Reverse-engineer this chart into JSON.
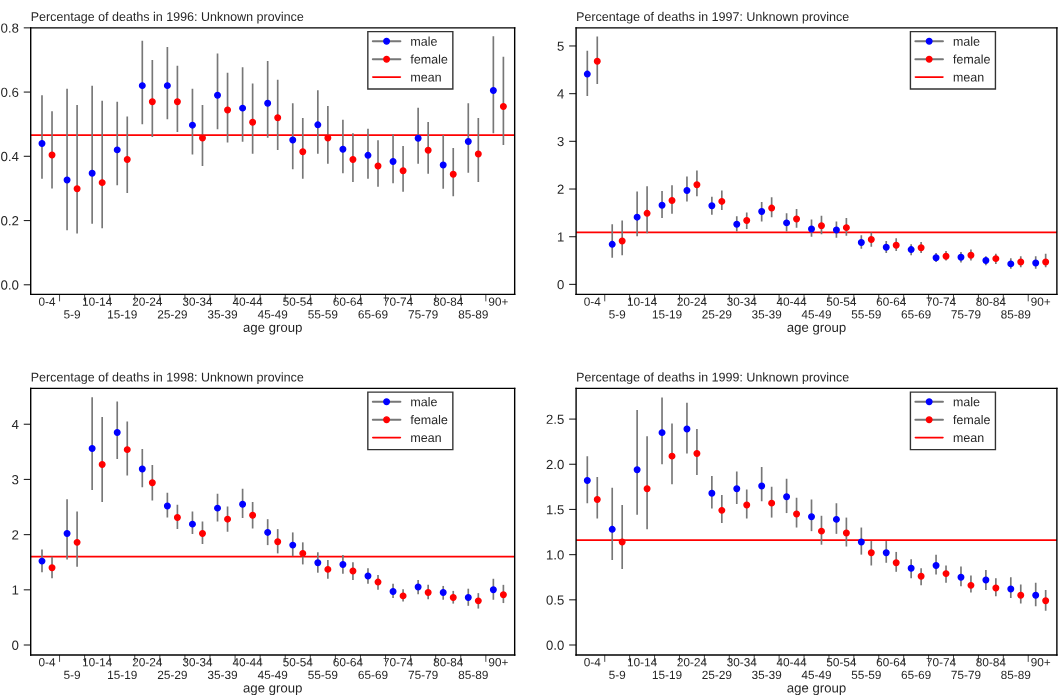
{
  "chart_data": [
    {
      "type": "scatter",
      "title": "Percentage of deaths in 1996: Unknown province",
      "xlabel": "age group",
      "categories": [
        "0-4",
        "5-9",
        "10-14",
        "15-19",
        "20-24",
        "25-29",
        "30-34",
        "35-39",
        "40-44",
        "45-49",
        "50-54",
        "55-59",
        "60-64",
        "65-69",
        "70-74",
        "75-79",
        "80-84",
        "85-89",
        "90+"
      ],
      "series": [
        {
          "name": "male",
          "color": "#0000ff",
          "values": [
            0.44,
            0.326,
            0.347,
            0.42,
            0.62,
            0.62,
            0.497,
            0.59,
            0.55,
            0.565,
            0.451,
            0.498,
            0.422,
            0.403,
            0.384,
            0.456,
            0.373,
            0.446,
            0.605
          ],
          "errors": [
            [
              0.33,
              0.59
            ],
            [
              0.17,
              0.61
            ],
            [
              0.19,
              0.62
            ],
            [
              0.31,
              0.57
            ],
            [
              0.5,
              0.76
            ],
            [
              0.515,
              0.74
            ],
            [
              0.406,
              0.61
            ],
            [
              0.484,
              0.72
            ],
            [
              0.445,
              0.677
            ],
            [
              0.458,
              0.697
            ],
            [
              0.36,
              0.565
            ],
            [
              0.408,
              0.606
            ],
            [
              0.347,
              0.514
            ],
            [
              0.33,
              0.486
            ],
            [
              0.316,
              0.469
            ],
            [
              0.377,
              0.551
            ],
            [
              0.299,
              0.466
            ],
            [
              0.349,
              0.565
            ],
            [
              0.472,
              0.774
            ]
          ]
        },
        {
          "name": "female",
          "color": "#ff0000",
          "values": [
            0.404,
            0.299,
            0.318,
            0.39,
            0.57,
            0.57,
            0.457,
            0.544,
            0.506,
            0.52,
            0.414,
            0.457,
            0.39,
            0.37,
            0.355,
            0.419,
            0.344,
            0.407,
            0.555
          ],
          "errors": [
            [
              0.3,
              0.54
            ],
            [
              0.16,
              0.56
            ],
            [
              0.176,
              0.573
            ],
            [
              0.286,
              0.524
            ],
            [
              0.46,
              0.7
            ],
            [
              0.476,
              0.682
            ],
            [
              0.37,
              0.56
            ],
            [
              0.443,
              0.66
            ],
            [
              0.408,
              0.627
            ],
            [
              0.42,
              0.638
            ],
            [
              0.33,
              0.519
            ],
            [
              0.377,
              0.557
            ],
            [
              0.32,
              0.472
            ],
            [
              0.305,
              0.45
            ],
            [
              0.29,
              0.432
            ],
            [
              0.346,
              0.507
            ],
            [
              0.276,
              0.426
            ],
            [
              0.32,
              0.519
            ],
            [
              0.435,
              0.71
            ]
          ]
        }
      ],
      "ref_lines": [
        {
          "axis": "y",
          "value": 0.466,
          "label": "mean",
          "color": "#ff0000"
        }
      ],
      "ylim": [
        -0.03,
        0.8
      ],
      "yticks": [
        {
          "value": 0,
          "label": "0.0"
        },
        0.2,
        0.4,
        0.6,
        0.8
      ],
      "legend": "top right",
      "marker": "circle",
      "grid": false
    },
    {
      "type": "scatter",
      "title": "Percentage of deaths in 1997: Unknown province",
      "xlabel": "age group",
      "categories": [
        "0-4",
        "5-9",
        "10-14",
        "15-19",
        "20-24",
        "25-29",
        "30-34",
        "35-39",
        "40-44",
        "45-49",
        "50-54",
        "55-59",
        "60-64",
        "65-69",
        "70-74",
        "75-79",
        "80-84",
        "85-89",
        "90+"
      ],
      "series": [
        {
          "name": "male",
          "color": "#0000ff",
          "values": [
            4.41,
            0.84,
            1.41,
            1.66,
            1.97,
            1.65,
            1.26,
            1.53,
            1.29,
            1.16,
            1.14,
            0.88,
            0.78,
            0.73,
            0.56,
            0.57,
            0.5,
            0.43,
            0.45
          ],
          "errors": [
            [
              3.95,
              4.9
            ],
            [
              0.56,
              1.26
            ],
            [
              1.01,
              1.95
            ],
            [
              1.39,
              1.96
            ],
            [
              1.74,
              2.26
            ],
            [
              1.46,
              1.84
            ],
            [
              1.11,
              1.43
            ],
            [
              1.32,
              1.73
            ],
            [
              1.11,
              1.49
            ],
            [
              1.0,
              1.36
            ],
            [
              0.98,
              1.32
            ],
            [
              0.75,
              1.03
            ],
            [
              0.66,
              0.91
            ],
            [
              0.61,
              0.84
            ],
            [
              0.47,
              0.66
            ],
            [
              0.46,
              0.68
            ],
            [
              0.4,
              0.59
            ],
            [
              0.33,
              0.55
            ],
            [
              0.33,
              0.59
            ]
          ]
        },
        {
          "name": "female",
          "color": "#ff0000",
          "values": [
            4.68,
            0.91,
            1.49,
            1.76,
            2.09,
            1.74,
            1.34,
            1.6,
            1.37,
            1.23,
            1.19,
            0.94,
            0.82,
            0.77,
            0.59,
            0.61,
            0.54,
            0.47,
            0.47
          ],
          "errors": [
            [
              4.2,
              5.2
            ],
            [
              0.61,
              1.34
            ],
            [
              1.07,
              2.06
            ],
            [
              1.48,
              2.08
            ],
            [
              1.85,
              2.39
            ],
            [
              1.56,
              1.97
            ],
            [
              1.16,
              1.51
            ],
            [
              1.41,
              1.83
            ],
            [
              1.19,
              1.58
            ],
            [
              1.05,
              1.44
            ],
            [
              1.02,
              1.39
            ],
            [
              0.79,
              1.09
            ],
            [
              0.7,
              0.97
            ],
            [
              0.66,
              0.89
            ],
            [
              0.5,
              0.7
            ],
            [
              0.5,
              0.73
            ],
            [
              0.43,
              0.64
            ],
            [
              0.36,
              0.59
            ],
            [
              0.36,
              0.64
            ]
          ]
        }
      ],
      "ref_lines": [
        {
          "axis": "y",
          "value": 1.09,
          "label": "mean",
          "color": "#ff0000"
        }
      ],
      "ylim": [
        -0.21,
        5.38
      ],
      "yticks": [
        0,
        1,
        2,
        3,
        4,
        5
      ],
      "legend": "top right",
      "marker": "circle",
      "grid": false
    },
    {
      "type": "scatter",
      "title": "Percentage of deaths in 1998: Unknown province",
      "xlabel": "age group",
      "categories": [
        "0-4",
        "5-9",
        "10-14",
        "15-19",
        "20-24",
        "25-29",
        "30-34",
        "35-39",
        "40-44",
        "45-49",
        "50-54",
        "55-59",
        "60-64",
        "65-69",
        "70-74",
        "75-79",
        "80-84",
        "85-89",
        "90+"
      ],
      "series": [
        {
          "name": "male",
          "color": "#0000ff",
          "values": [
            1.52,
            2.02,
            3.56,
            3.85,
            3.19,
            2.52,
            2.19,
            2.48,
            2.55,
            2.04,
            1.81,
            1.49,
            1.46,
            1.25,
            0.97,
            1.05,
            0.95,
            0.86,
            1.0
          ],
          "errors": [
            [
              1.32,
              1.73
            ],
            [
              1.55,
              2.64
            ],
            [
              2.81,
              4.49
            ],
            [
              3.37,
              4.41
            ],
            [
              2.86,
              3.55
            ],
            [
              2.31,
              2.76
            ],
            [
              2.01,
              2.42
            ],
            [
              2.24,
              2.74
            ],
            [
              2.3,
              2.83
            ],
            [
              1.81,
              2.28
            ],
            [
              1.61,
              2.04
            ],
            [
              1.31,
              1.68
            ],
            [
              1.29,
              1.63
            ],
            [
              1.11,
              1.39
            ],
            [
              0.85,
              1.11
            ],
            [
              0.92,
              1.18
            ],
            [
              0.82,
              1.07
            ],
            [
              0.71,
              1.02
            ],
            [
              0.82,
              1.2
            ]
          ]
        },
        {
          "name": "female",
          "color": "#ff0000",
          "values": [
            1.4,
            1.86,
            3.27,
            3.54,
            2.94,
            2.31,
            2.02,
            2.28,
            2.35,
            1.87,
            1.66,
            1.37,
            1.34,
            1.14,
            0.89,
            0.95,
            0.86,
            0.8,
            0.91
          ],
          "errors": [
            [
              1.21,
              1.6
            ],
            [
              1.42,
              2.42
            ],
            [
              2.59,
              4.13
            ],
            [
              3.07,
              4.05
            ],
            [
              2.62,
              3.26
            ],
            [
              2.1,
              2.54
            ],
            [
              1.83,
              2.24
            ],
            [
              2.05,
              2.51
            ],
            [
              2.11,
              2.59
            ],
            [
              1.66,
              2.1
            ],
            [
              1.46,
              1.86
            ],
            [
              1.2,
              1.54
            ],
            [
              1.18,
              1.5
            ],
            [
              1.0,
              1.27
            ],
            [
              0.79,
              1.01
            ],
            [
              0.83,
              1.09
            ],
            [
              0.75,
              0.98
            ],
            [
              0.66,
              0.94
            ],
            [
              0.76,
              1.09
            ]
          ]
        }
      ],
      "ref_lines": [
        {
          "axis": "y",
          "value": 1.6,
          "label": "mean",
          "color": "#ff0000"
        }
      ],
      "ylim": [
        -0.18,
        4.65
      ],
      "yticks": [
        0,
        1,
        2,
        3,
        4
      ],
      "legend": "top right",
      "marker": "circle",
      "grid": false
    },
    {
      "type": "scatter",
      "title": "Percentage of deaths in 1999: Unknown province",
      "xlabel": "age group",
      "categories": [
        "0-4",
        "5-9",
        "10-14",
        "15-19",
        "20-24",
        "25-29",
        "30-34",
        "35-39",
        "40-44",
        "45-49",
        "50-54",
        "55-59",
        "60-64",
        "65-69",
        "70-74",
        "75-79",
        "80-84",
        "85-89",
        "90+"
      ],
      "series": [
        {
          "name": "male",
          "color": "#0000ff",
          "values": [
            1.82,
            1.28,
            1.94,
            2.35,
            2.39,
            1.68,
            1.73,
            1.76,
            1.64,
            1.42,
            1.39,
            1.14,
            1.02,
            0.85,
            0.88,
            0.75,
            0.72,
            0.62,
            0.55
          ],
          "errors": [
            [
              1.57,
              2.09
            ],
            [
              0.94,
              1.74
            ],
            [
              1.44,
              2.6
            ],
            [
              2.0,
              2.74
            ],
            [
              2.12,
              2.68
            ],
            [
              1.51,
              1.87
            ],
            [
              1.56,
              1.92
            ],
            [
              1.59,
              1.97
            ],
            [
              1.46,
              1.84
            ],
            [
              1.26,
              1.61
            ],
            [
              1.23,
              1.57
            ],
            [
              1.0,
              1.3
            ],
            [
              0.91,
              1.15
            ],
            [
              0.74,
              0.95
            ],
            [
              0.78,
              1.0
            ],
            [
              0.65,
              0.87
            ],
            [
              0.61,
              0.83
            ],
            [
              0.52,
              0.75
            ],
            [
              0.43,
              0.69
            ]
          ]
        },
        {
          "name": "female",
          "color": "#ff0000",
          "values": [
            1.61,
            1.14,
            1.73,
            2.09,
            2.12,
            1.49,
            1.55,
            1.57,
            1.45,
            1.26,
            1.24,
            1.02,
            0.91,
            0.76,
            0.79,
            0.66,
            0.63,
            0.55,
            0.49
          ],
          "errors": [
            [
              1.4,
              1.86
            ],
            [
              0.84,
              1.55
            ],
            [
              1.28,
              2.31
            ],
            [
              1.78,
              2.45
            ],
            [
              1.88,
              2.39
            ],
            [
              1.35,
              1.66
            ],
            [
              1.4,
              1.72
            ],
            [
              1.41,
              1.75
            ],
            [
              1.3,
              1.63
            ],
            [
              1.11,
              1.43
            ],
            [
              1.09,
              1.41
            ],
            [
              0.88,
              1.15
            ],
            [
              0.81,
              1.03
            ],
            [
              0.66,
              0.85
            ],
            [
              0.69,
              0.88
            ],
            [
              0.58,
              0.77
            ],
            [
              0.54,
              0.74
            ],
            [
              0.46,
              0.67
            ],
            [
              0.38,
              0.61
            ]
          ]
        }
      ],
      "ref_lines": [
        {
          "axis": "y",
          "value": 1.16,
          "label": "mean",
          "color": "#ff0000"
        }
      ],
      "ylim": [
        -0.11,
        2.84
      ],
      "yticks": [
        {
          "value": 0,
          "label": "0.0"
        },
        0.5,
        {
          "value": 1,
          "label": "1.0"
        },
        1.5,
        {
          "value": 2,
          "label": "2.0"
        },
        2.5
      ],
      "legend": "top right",
      "marker": "circle",
      "grid": false
    }
  ]
}
